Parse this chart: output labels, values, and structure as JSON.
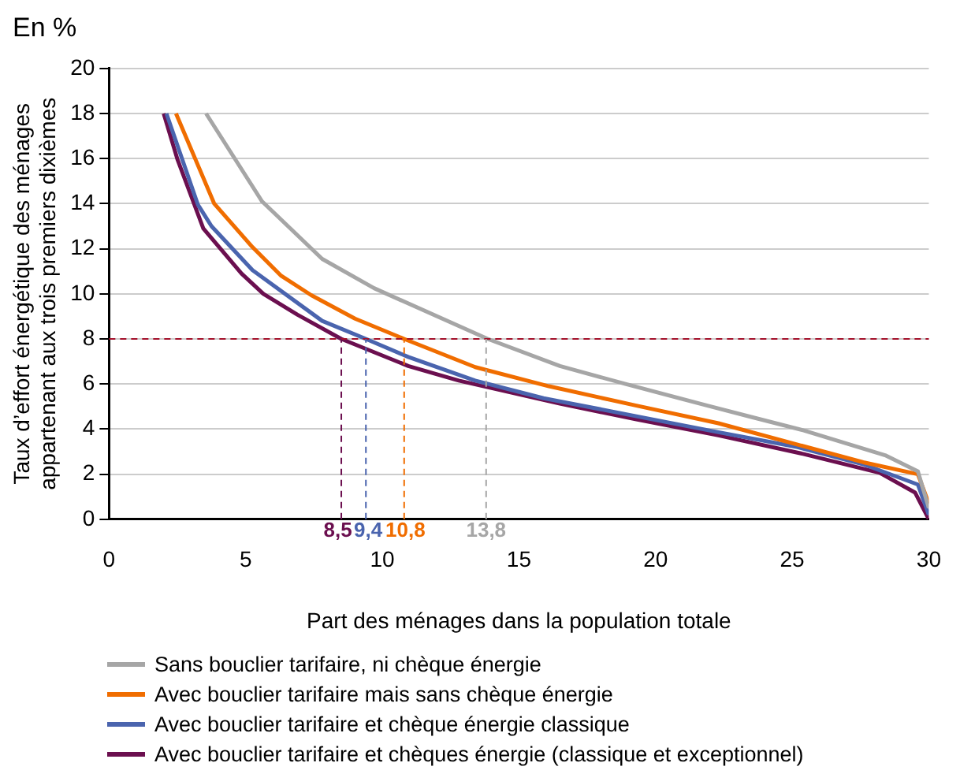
{
  "chart_data": {
    "type": "line",
    "subtitle": "En %",
    "xlabel": "Part des ménages dans la population totale",
    "ylabel": "Taux d’effort énergétique des ménages appartenant aux trois premiers dixièmes",
    "xlim": [
      0,
      30
    ],
    "xticks": [
      0,
      5,
      10,
      15,
      20,
      25,
      30
    ],
    "ylim": [
      0,
      20
    ],
    "yticks": [
      0,
      2,
      4,
      6,
      8,
      10,
      12,
      14,
      16,
      18,
      20
    ],
    "grid": "y",
    "legend": "bottom",
    "marker": "none",
    "line_style": "solid",
    "series": [
      {
        "name": "Sans bouclier tarifaire, ni chèque énergie",
        "color": "#a6a6a6",
        "x": [
          3.55,
          5.6,
          7.8,
          9.7,
          13.86,
          16.5,
          18.9,
          21.9,
          23.5,
          25.4,
          28.4,
          29.6,
          30
        ],
        "values": [
          18,
          14.1,
          11.55,
          10.25,
          8,
          6.8,
          6.0,
          5.04,
          4.54,
          3.95,
          2.84,
          2.13,
          0.5
        ]
      },
      {
        "name": "Avec bouclier tarifaire mais sans chèque énergie",
        "color": "#f06d00",
        "x": [
          2.45,
          3.85,
          5.25,
          6.3,
          7.4,
          9.0,
          10.8,
          13.4,
          16.1,
          19.3,
          22.3,
          25.2,
          27.6,
          29.6,
          30
        ],
        "values": [
          18,
          14.0,
          12.07,
          10.8,
          9.94,
          8.9,
          8.0,
          6.75,
          5.9,
          5.04,
          4.26,
          3.31,
          2.53,
          2.0,
          0.7
        ]
      },
      {
        "name": "Avec bouclier tarifaire et chèque énergie classique",
        "color": "#4a64ae",
        "x": [
          2.1,
          3.25,
          3.75,
          5.25,
          7.8,
          9.4,
          10.95,
          13.4,
          15.9,
          19.3,
          22.3,
          25.2,
          27.6,
          29.6,
          30
        ],
        "values": [
          18,
          13.96,
          13.0,
          11.05,
          8.8,
          8.0,
          7.2,
          6.15,
          5.37,
          4.57,
          3.86,
          3.2,
          2.44,
          1.54,
          0.2
        ]
      },
      {
        "name": "Avec bouclier tarifaire et chèques énergie (classique et exceptionnel)",
        "color": "#6b0f4f",
        "x": [
          2.0,
          2.5,
          3.45,
          4.85,
          5.65,
          6.9,
          8.5,
          10.95,
          12.8,
          16.5,
          19.3,
          22.3,
          25.4,
          28.2,
          29.5,
          30
        ],
        "values": [
          18,
          15.98,
          12.9,
          10.9,
          10.0,
          9.07,
          8.0,
          6.8,
          6.15,
          5.13,
          4.43,
          3.72,
          2.9,
          2.06,
          1.18,
          0
        ]
      }
    ],
    "ref_lines": [
      {
        "axis": "y",
        "value": 8,
        "color": "#a3102a",
        "line_style": "dashed"
      },
      {
        "axis": "x",
        "value": 8.5,
        "label": "8,5",
        "color": "#6b0f4f",
        "line_style": "dashed"
      },
      {
        "axis": "x",
        "value": 9.4,
        "label": "9,4",
        "color": "#4a64ae",
        "line_style": "dashed"
      },
      {
        "axis": "x",
        "value": 10.8,
        "label": "10,8",
        "color": "#f06d00",
        "line_style": "dashed"
      },
      {
        "axis": "x",
        "value": 13.8,
        "label": "13,8",
        "color": "#a6a6a6",
        "line_style": "dashed"
      }
    ]
  }
}
